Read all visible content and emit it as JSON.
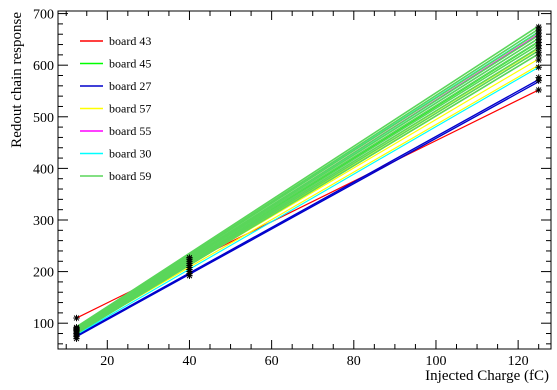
{
  "chart_data": {
    "type": "line",
    "xlabel": "Injected Charge (fC)",
    "ylabel": "Redout chain response",
    "xlim": [
      8,
      128
    ],
    "ylim": [
      50,
      705
    ],
    "x_ticks": [
      20,
      40,
      60,
      80,
      100,
      120
    ],
    "y_ticks": [
      100,
      200,
      300,
      400,
      500,
      600,
      700
    ],
    "legend_position": "top-left",
    "grid": false,
    "series": [
      {
        "name": "board 43",
        "color": "#ff0000",
        "width": 1.2,
        "lines": [
          [
            [
              12.5,
              110
            ],
            [
              125,
              552
            ]
          ]
        ],
        "x": [
          12.5,
          40,
          125
        ],
        "y": [
          110,
          205,
          552
        ]
      },
      {
        "name": "board 45",
        "color": "#00ff00",
        "width": 1.2,
        "lines": [
          [
            [
              12.5,
              82
            ],
            [
              125,
              645
            ]
          ]
        ],
        "x": [
          12.5,
          40,
          125
        ],
        "y": [
          82,
          218,
          645
        ]
      },
      {
        "name": "board 27",
        "color": "#0000cc",
        "width": 1.4,
        "lines": [
          [
            [
              12.5,
              74
            ],
            [
              125,
              568
            ]
          ],
          [
            [
              12.5,
              76
            ],
            [
              125,
              572
            ]
          ]
        ],
        "x": [
          12.5,
          40,
          125
        ],
        "y": [
          75,
          195,
          570
        ]
      },
      {
        "name": "board 57",
        "color": "#ffff00",
        "width": 1.2,
        "lines": [
          [
            [
              12.5,
              82
            ],
            [
              125,
              600
            ]
          ],
          [
            [
              12.5,
              84
            ],
            [
              125,
              612
            ]
          ],
          [
            [
              12.5,
              83
            ],
            [
              125,
              622
            ]
          ],
          [
            [
              12.5,
              85
            ],
            [
              125,
              632
            ]
          ]
        ],
        "x": [
          12.5,
          40,
          125
        ],
        "y": [
          83,
          210,
          615
        ]
      },
      {
        "name": "board 55",
        "color": "#ff00ff",
        "width": 1.2,
        "lines": [
          [
            [
              12.5,
              86
            ],
            [
              125,
              660
            ]
          ]
        ],
        "x": [
          12.5,
          40,
          125
        ],
        "y": [
          86,
          220,
          660
        ]
      },
      {
        "name": "board 30",
        "color": "#00ffff",
        "width": 1.2,
        "lines": [
          [
            [
              12.5,
              78
            ],
            [
              125,
              596
            ]
          ],
          [
            [
              12.5,
              90
            ],
            [
              125,
              652
            ]
          ],
          [
            [
              12.5,
              92
            ],
            [
              125,
              665
            ]
          ]
        ],
        "x": [
          12.5,
          40,
          125
        ],
        "y": [
          85,
          215,
          640
        ]
      },
      {
        "name": "board 59",
        "color": "#5ad65a",
        "width": 1.6,
        "lines": [
          [
            [
              12.5,
              80
            ],
            [
              125,
              622
            ]
          ],
          [
            [
              12.5,
              82
            ],
            [
              125,
              628
            ]
          ],
          [
            [
              12.5,
              83
            ],
            [
              125,
              634
            ]
          ],
          [
            [
              12.5,
              84
            ],
            [
              125,
              640
            ]
          ],
          [
            [
              12.5,
              86
            ],
            [
              125,
              646
            ]
          ],
          [
            [
              12.5,
              87
            ],
            [
              125,
              652
            ]
          ],
          [
            [
              12.5,
              88
            ],
            [
              125,
              658
            ]
          ],
          [
            [
              12.5,
              90
            ],
            [
              125,
              664
            ]
          ],
          [
            [
              12.5,
              91
            ],
            [
              125,
              670
            ]
          ],
          [
            [
              12.5,
              93
            ],
            [
              125,
              676
            ]
          ]
        ],
        "x": [
          12.5,
          40,
          125
        ],
        "y": [
          86,
          218,
          650
        ]
      }
    ],
    "markers": {
      "symbol": "*",
      "color": "#000000",
      "points": [
        [
          12.5,
          70
        ],
        [
          12.5,
          74
        ],
        [
          12.5,
          77
        ],
        [
          12.5,
          80
        ],
        [
          12.5,
          83
        ],
        [
          12.5,
          86
        ],
        [
          12.5,
          88
        ],
        [
          12.5,
          90
        ],
        [
          12.5,
          92
        ],
        [
          12.5,
          110
        ],
        [
          40,
          192
        ],
        [
          40,
          196
        ],
        [
          40,
          200
        ],
        [
          40,
          204
        ],
        [
          40,
          208
        ],
        [
          40,
          212
        ],
        [
          40,
          216
        ],
        [
          40,
          220
        ],
        [
          40,
          224
        ],
        [
          40,
          227
        ],
        [
          125,
          552
        ],
        [
          125,
          570
        ],
        [
          125,
          576
        ],
        [
          125,
          596
        ],
        [
          125,
          610
        ],
        [
          125,
          618
        ],
        [
          125,
          625
        ],
        [
          125,
          632
        ],
        [
          125,
          638
        ],
        [
          125,
          644
        ],
        [
          125,
          650
        ],
        [
          125,
          656
        ],
        [
          125,
          662
        ],
        [
          125,
          668
        ],
        [
          125,
          674
        ]
      ]
    }
  }
}
